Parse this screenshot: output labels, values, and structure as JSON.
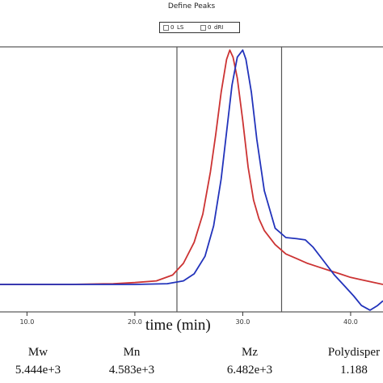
{
  "window": {
    "title": "Define Peaks"
  },
  "legend": {
    "items": [
      {
        "label": "LS",
        "prefix": "0"
      },
      {
        "label": "dRI",
        "prefix": "0"
      }
    ]
  },
  "chart_data": {
    "type": "line",
    "xlabel": "time (min)",
    "ylabel": "",
    "xlim": [
      7.5,
      43.0
    ],
    "ylim": [
      -0.12,
      1.1
    ],
    "grid": false,
    "x_ticks": [
      10,
      20,
      30,
      40
    ],
    "x_tick_labels": [
      "10.0",
      "20.0",
      "30.0",
      "40.0"
    ],
    "peak_limits": [
      23.9,
      33.6
    ],
    "series": [
      {
        "color": "#cc3333",
        "x": [
          7.5,
          14,
          18,
          20,
          22,
          23.5,
          24.5,
          25.5,
          26.3,
          27.0,
          27.5,
          28.0,
          28.5,
          28.8,
          29.1,
          29.5,
          30.0,
          30.5,
          31.0,
          31.5,
          32.0,
          33.0,
          34.0,
          35.0,
          36.0,
          37.0,
          38.0,
          39.0,
          40.0,
          41.0,
          42.0,
          43.0
        ],
        "y": [
          0.0,
          0.0,
          0.003,
          0.008,
          0.015,
          0.04,
          0.09,
          0.18,
          0.3,
          0.48,
          0.64,
          0.82,
          0.96,
          1.0,
          0.97,
          0.88,
          0.7,
          0.5,
          0.36,
          0.28,
          0.23,
          0.17,
          0.13,
          0.11,
          0.09,
          0.075,
          0.06,
          0.045,
          0.03,
          0.02,
          0.01,
          0.0
        ]
      },
      {
        "color": "#2233bb",
        "x": [
          7.5,
          14,
          20,
          23,
          24.5,
          25.5,
          26.5,
          27.3,
          28.0,
          28.5,
          29.0,
          29.5,
          30.0,
          30.3,
          30.8,
          31.3,
          32.0,
          33.0,
          34.0,
          35.0,
          35.8,
          36.5,
          37.5,
          38.5,
          39.5,
          40.3,
          41.0,
          41.8,
          42.5,
          43.0
        ],
        "y": [
          0.0,
          0.0,
          0.0,
          0.003,
          0.015,
          0.045,
          0.12,
          0.25,
          0.45,
          0.65,
          0.85,
          0.97,
          1.0,
          0.96,
          0.82,
          0.62,
          0.4,
          0.24,
          0.2,
          0.195,
          0.19,
          0.16,
          0.1,
          0.04,
          -0.01,
          -0.05,
          -0.09,
          -0.11,
          -0.09,
          -0.07
        ]
      }
    ]
  },
  "stats": [
    {
      "label": "Mw",
      "value": "5.444e+3"
    },
    {
      "label": "Mn",
      "value": "4.583e+3"
    },
    {
      "label": "Mz",
      "value": "6.482e+3"
    },
    {
      "label": "Polydisper",
      "value": "1.188"
    }
  ]
}
